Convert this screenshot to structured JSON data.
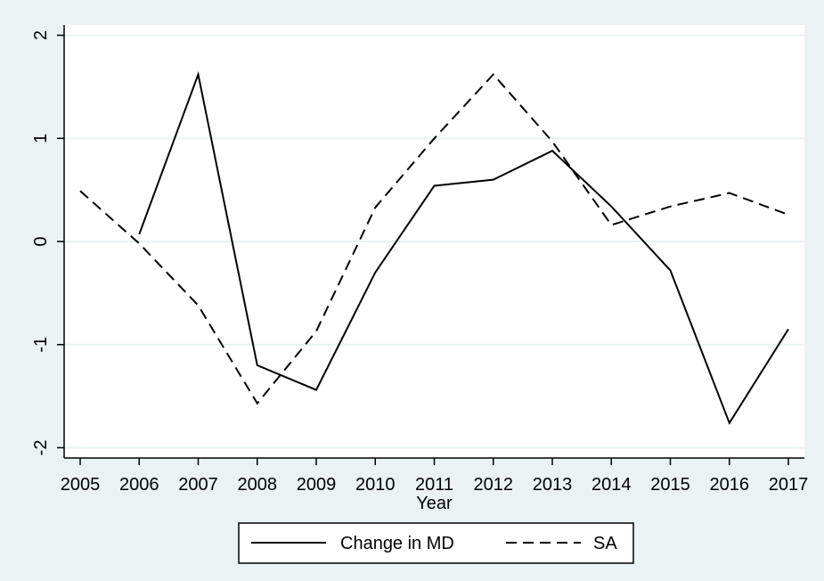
{
  "chart_data": {
    "type": "line",
    "title": "",
    "xlabel": "Year",
    "ylabel": "",
    "x": [
      2005,
      2006,
      2007,
      2008,
      2009,
      2010,
      2011,
      2012,
      2013,
      2014,
      2015,
      2016,
      2017
    ],
    "x_tick_labels": [
      "2005",
      "2006",
      "2007",
      "2008",
      "2009",
      "2010",
      "2011",
      "2012",
      "2013",
      "2014",
      "2015",
      "2016",
      "2017"
    ],
    "y_ticks": [
      -2,
      -1,
      0,
      1,
      2
    ],
    "y_tick_labels": [
      "-2",
      "-1",
      "0",
      "1",
      "2"
    ],
    "xlim": [
      2005,
      2017
    ],
    "ylim": [
      -2.1,
      2.1
    ],
    "grid": true,
    "legend_position": "bottom",
    "series": [
      {
        "name": "Change in MD",
        "line_style": "solid",
        "color": "#000000",
        "values": [
          null,
          0.07,
          1.62,
          -1.2,
          -1.44,
          -0.3,
          0.54,
          0.6,
          0.88,
          0.34,
          -0.28,
          -1.76,
          -0.85
        ]
      },
      {
        "name": "SA",
        "line_style": "dashed",
        "color": "#000000",
        "values": [
          0.49,
          -0.02,
          -0.62,
          -1.57,
          -0.87,
          0.33,
          1.0,
          1.62,
          0.97,
          0.16,
          0.34,
          0.47,
          0.26
        ]
      }
    ],
    "colors": {
      "background": "#eaf2f3",
      "plot_background": "#ffffff",
      "gridline": "#eaf2f3",
      "axis": "#000000"
    }
  }
}
